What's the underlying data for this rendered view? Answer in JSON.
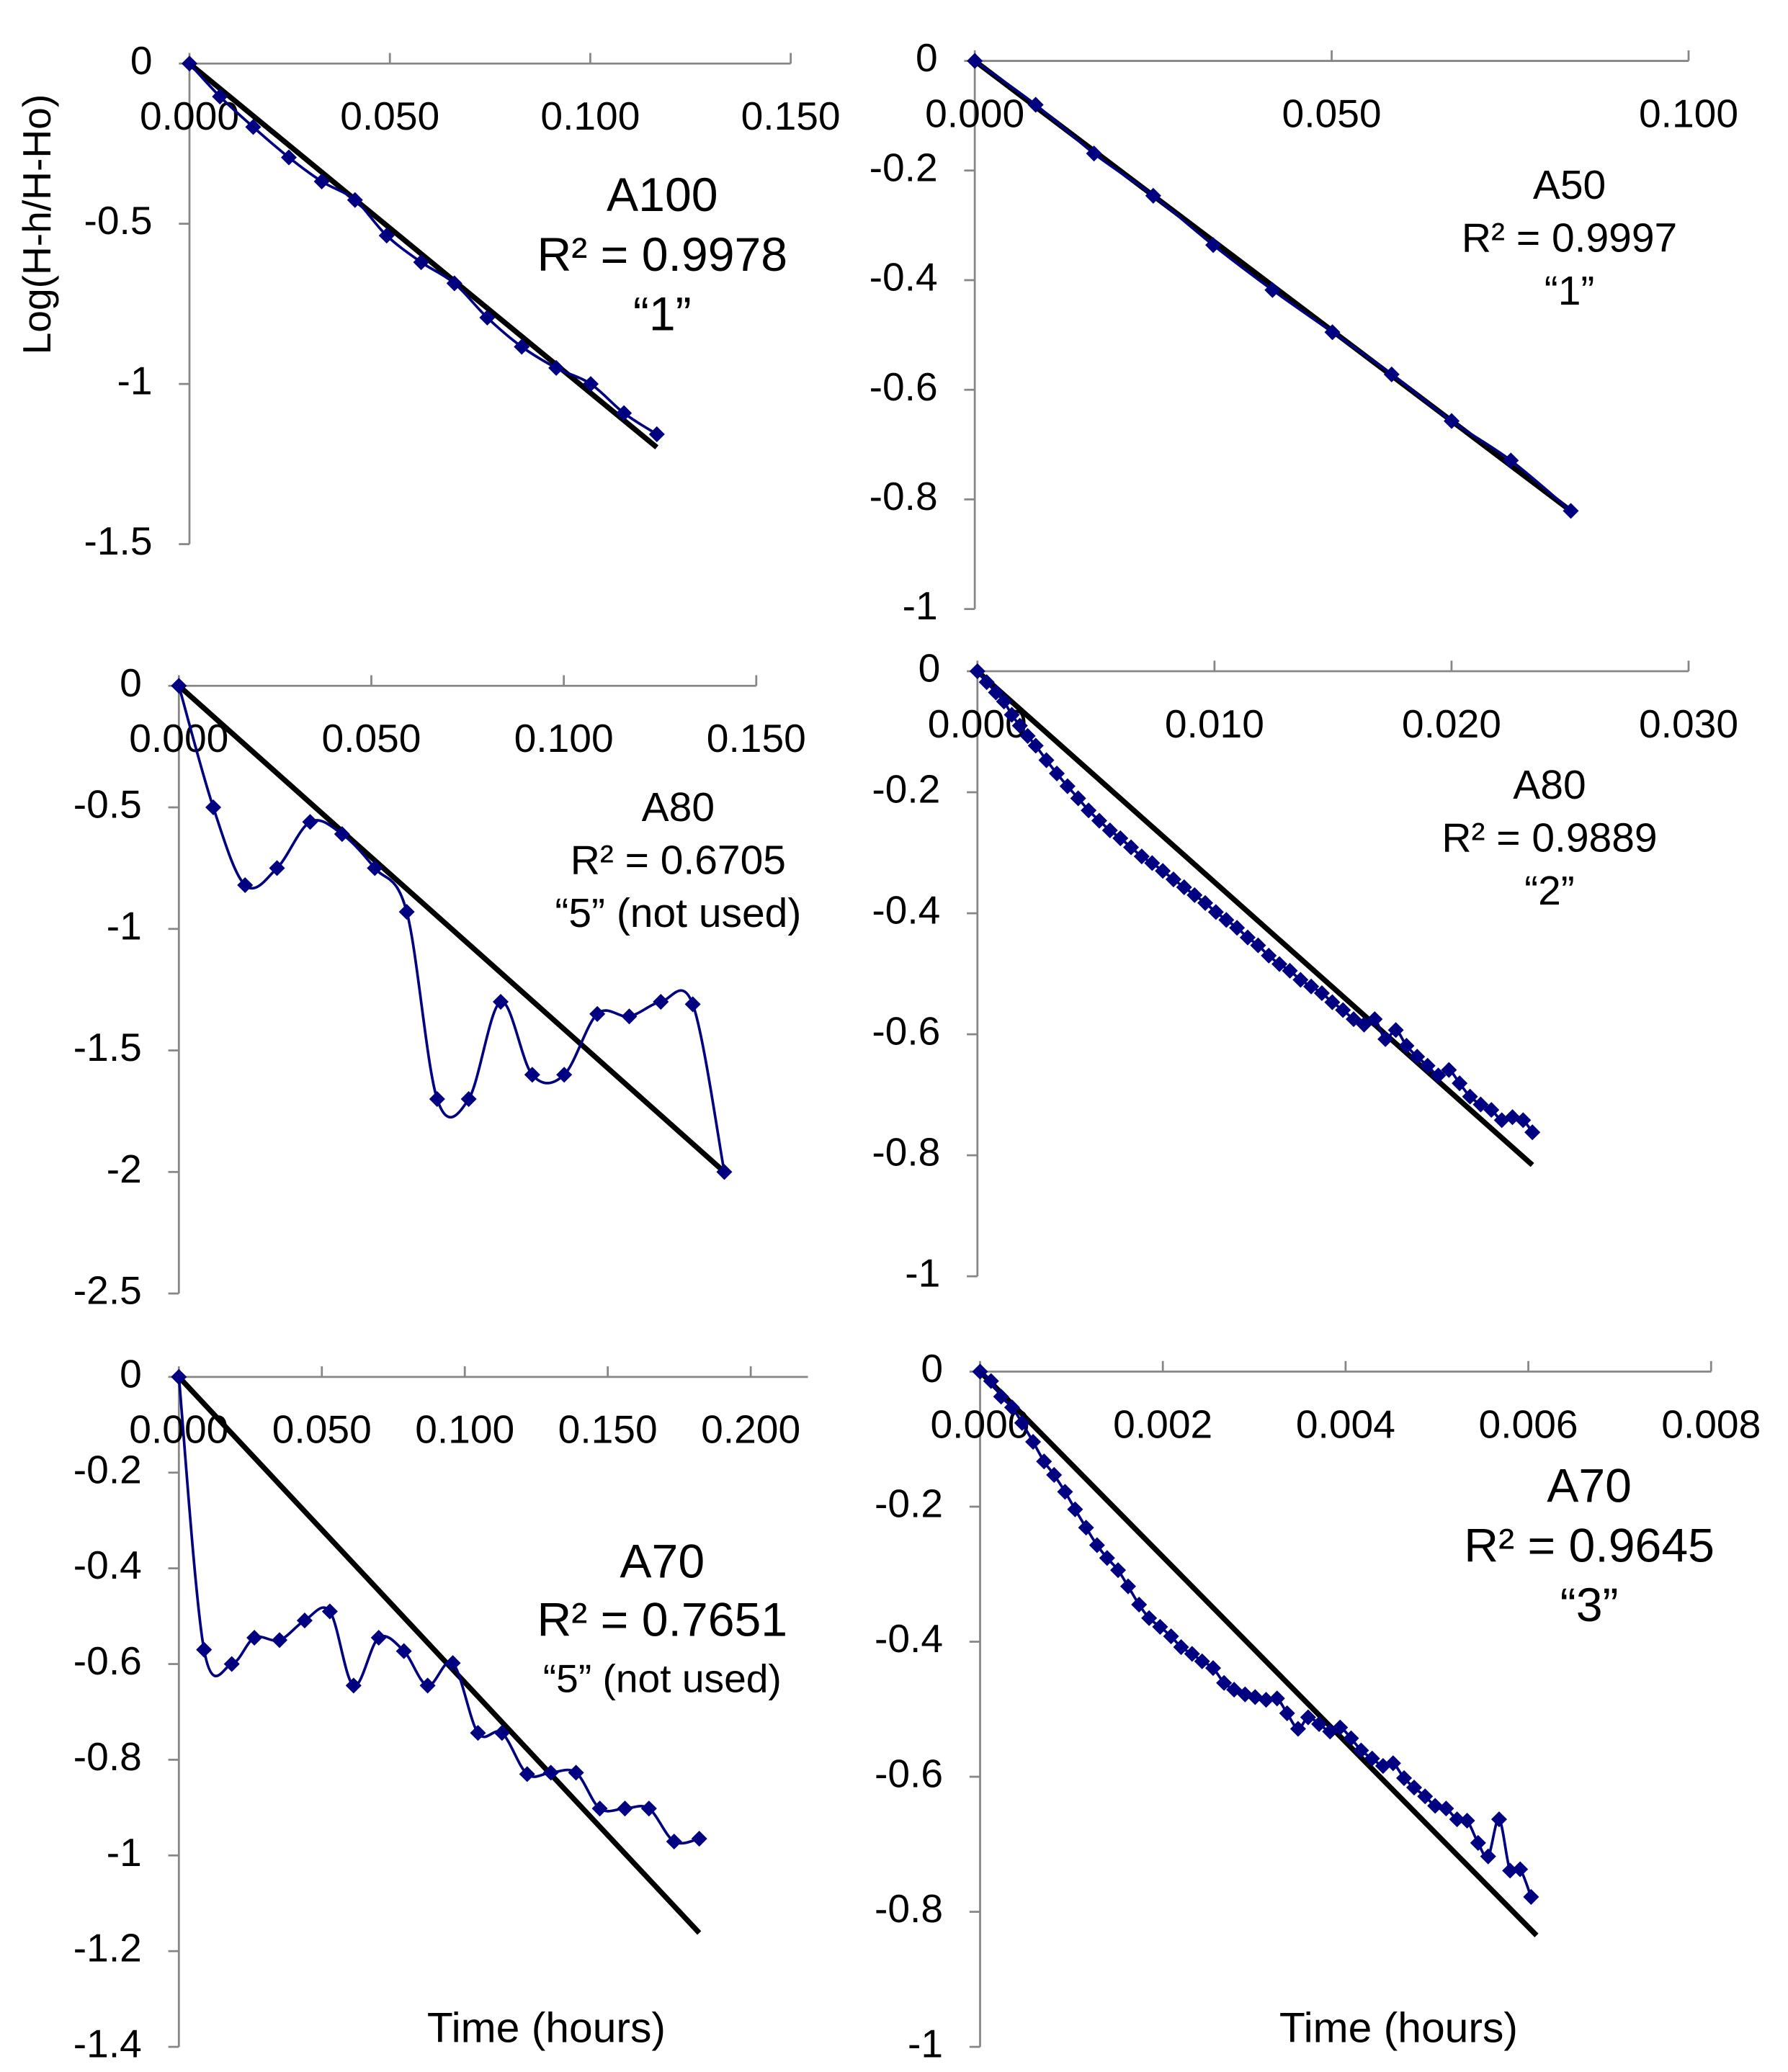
{
  "chart_data": [
    {
      "type": "line",
      "y_label": "Log(H-h/H-Ho)",
      "annotation": [
        "A100",
        "R² = 0.9978",
        "“1”"
      ],
      "xlim": [
        0,
        0.15
      ],
      "ylim": [
        -1.5,
        0
      ],
      "xticks": [
        {
          "value": 0,
          "label": "0.000"
        },
        {
          "value": 0.05,
          "label": "0.050"
        },
        {
          "value": 0.1,
          "label": "0.100"
        },
        {
          "value": 0.15,
          "label": "0.150"
        }
      ],
      "yticks": [
        0,
        -0.5,
        -1,
        -1.5
      ],
      "series": [
        {
          "color": "#000080",
          "marker": "diamond",
          "smooth": true,
          "x": [
            0,
            0.0076,
            0.0159,
            0.0248,
            0.033,
            0.0413,
            0.0492,
            0.0578,
            0.0661,
            0.0743,
            0.0829,
            0.0915,
            0.1001,
            0.1084,
            0.1166
          ],
          "values": [
            0,
            -0.103,
            -0.198,
            -0.293,
            -0.368,
            -0.426,
            -0.537,
            -0.62,
            -0.686,
            -0.793,
            -0.884,
            -0.95,
            -1.0,
            -1.091,
            -1.157
          ]
        },
        {
          "color": "#000000",
          "x": [
            0,
            0.1166
          ],
          "values": [
            0,
            -1.198
          ]
        }
      ]
    },
    {
      "type": "line",
      "annotation": [
        "A50",
        "R² = 0.9997",
        "“1”"
      ],
      "xlim": [
        0,
        0.1
      ],
      "ylim": [
        -1,
        0
      ],
      "xticks": [
        {
          "value": 0,
          "label": "0.000"
        },
        {
          "value": 0.05,
          "label": "0.050"
        },
        {
          "value": 0.1,
          "label": "0.100"
        }
      ],
      "yticks": [
        0,
        -0.2,
        -0.4,
        -0.6,
        -0.8,
        -1
      ],
      "series": [
        {
          "color": "#000080",
          "marker": "diamond",
          "smooth": true,
          "x": [
            0,
            0.00853,
            0.0167,
            0.025,
            0.0334,
            0.0417,
            0.0501,
            0.0584,
            0.0668,
            0.0751,
            0.0835
          ],
          "values": [
            0,
            -0.08,
            -0.169,
            -0.246,
            -0.336,
            -0.418,
            -0.495,
            -0.572,
            -0.657,
            -0.729,
            -0.821
          ]
        },
        {
          "color": "#000000",
          "x": [
            0,
            0.0835
          ],
          "values": [
            0,
            -0.821
          ]
        }
      ]
    },
    {
      "type": "line",
      "annotation": [
        "A80",
        "R² = 0.6705",
        "“5” (not used)"
      ],
      "xlim": [
        0,
        0.15
      ],
      "ylim": [
        -2.5,
        0
      ],
      "xticks": [
        {
          "value": 0,
          "label": "0.000"
        },
        {
          "value": 0.05,
          "label": "0.050"
        },
        {
          "value": 0.1,
          "label": "0.100"
        },
        {
          "value": 0.15,
          "label": "0.150"
        }
      ],
      "yticks": [
        0,
        -0.5,
        -1,
        -1.5,
        -2,
        -2.5
      ],
      "series": [
        {
          "color": "#000080",
          "marker": "diamond",
          "smooth": true,
          "x": [
            0,
            0.00894,
            0.0172,
            0.0255,
            0.0341,
            0.0424,
            0.0509,
            0.0592,
            0.0671,
            0.0753,
            0.0836,
            0.0918,
            0.1001,
            0.1087,
            0.117,
            0.1252,
            0.1335,
            0.1417
          ],
          "values": [
            0,
            -0.5,
            -0.82,
            -0.75,
            -0.56,
            -0.61,
            -0.75,
            -0.93,
            -1.7,
            -1.7,
            -1.3,
            -1.6,
            -1.6,
            -1.35,
            -1.36,
            -1.3,
            -1.31,
            -2.0
          ]
        },
        {
          "color": "#000000",
          "x": [
            0,
            0.1417
          ],
          "values": [
            0,
            -2.0
          ]
        }
      ]
    },
    {
      "type": "line",
      "annotation": [
        "A80",
        "R² = 0.9889",
        "“2”"
      ],
      "xlim": [
        0,
        0.03
      ],
      "ylim": [
        -1,
        0
      ],
      "xticks": [
        {
          "value": 0,
          "label": "0.000"
        },
        {
          "value": 0.01,
          "label": "0.010"
        },
        {
          "value": 0.02,
          "label": "0.020"
        },
        {
          "value": 0.03,
          "label": "0.030"
        }
      ],
      "yticks": [
        0,
        -0.2,
        -0.4,
        -0.6,
        -0.8,
        -1
      ],
      "series": [
        {
          "color": "#000080",
          "marker": "diamond",
          "smooth": true,
          "x": [
            0,
            0.00039,
            0.00078,
            0.00112,
            0.00145,
            0.00179,
            0.00212,
            0.00246,
            0.00291,
            0.00335,
            0.0038,
            0.00425,
            0.00469,
            0.00514,
            0.00559,
            0.00603,
            0.00648,
            0.00693,
            0.00737,
            0.00782,
            0.00827,
            0.00872,
            0.00916,
            0.00961,
            0.01006,
            0.0105,
            0.01095,
            0.0114,
            0.01184,
            0.01229,
            0.01274,
            0.01318,
            0.01363,
            0.01408,
            0.01453,
            0.01497,
            0.01542,
            0.01587,
            0.01631,
            0.01676,
            0.01721,
            0.01765,
            0.0181,
            0.01855,
            0.01899,
            0.01944,
            0.01989,
            0.02034,
            0.02078,
            0.02123,
            0.02168,
            0.02212,
            0.02257,
            0.02302,
            0.02341
          ],
          "values": [
            0,
            -0.018,
            -0.035,
            -0.05,
            -0.072,
            -0.09,
            -0.107,
            -0.123,
            -0.147,
            -0.169,
            -0.19,
            -0.21,
            -0.23,
            -0.247,
            -0.263,
            -0.276,
            -0.291,
            -0.306,
            -0.317,
            -0.33,
            -0.344,
            -0.357,
            -0.37,
            -0.383,
            -0.398,
            -0.411,
            -0.424,
            -0.44,
            -0.453,
            -0.47,
            -0.484,
            -0.495,
            -0.51,
            -0.521,
            -0.532,
            -0.547,
            -0.56,
            -0.575,
            -0.584,
            -0.575,
            -0.608,
            -0.593,
            -0.619,
            -0.637,
            -0.652,
            -0.668,
            -0.659,
            -0.681,
            -0.703,
            -0.716,
            -0.725,
            -0.742,
            -0.737,
            -0.742,
            -0.762
          ]
        },
        {
          "color": "#000000",
          "x": [
            0,
            0.02341
          ],
          "values": [
            0,
            -0.816
          ]
        }
      ]
    },
    {
      "type": "line",
      "x_label": "Time (hours)",
      "annotation": [
        "A70",
        "R² = 0.7651",
        "“5” (not used)"
      ],
      "xlim": [
        0,
        0.22
      ],
      "ylim": [
        -1.4,
        0
      ],
      "xticks": [
        {
          "value": 0,
          "label": "0.000"
        },
        {
          "value": 0.05,
          "label": "0.050"
        },
        {
          "value": 0.1,
          "label": "0.100"
        },
        {
          "value": 0.15,
          "label": "0.150"
        },
        {
          "value": 0.2,
          "label": "0.200"
        }
      ],
      "yticks": [
        0,
        -0.2,
        -0.4,
        -0.6,
        -0.8,
        -1,
        -1.2,
        -1.4
      ],
      "series": [
        {
          "color": "#000080",
          "marker": "diamond",
          "smooth": true,
          "x": [
            0,
            0.0088,
            0.0185,
            0.0264,
            0.0352,
            0.044,
            0.0528,
            0.0611,
            0.0699,
            0.0787,
            0.087,
            0.0958,
            0.1046,
            0.113,
            0.1218,
            0.1301,
            0.1389,
            0.1472,
            0.156,
            0.1644,
            0.1732,
            0.182
          ],
          "values": [
            0,
            -0.57,
            -0.6,
            -0.545,
            -0.55,
            -0.509,
            -0.49,
            -0.645,
            -0.545,
            -0.573,
            -0.645,
            -0.598,
            -0.744,
            -0.744,
            -0.83,
            -0.827,
            -0.827,
            -0.902,
            -0.902,
            -0.902,
            -0.971,
            -0.965
          ]
        },
        {
          "color": "#000000",
          "x": [
            0,
            0.182
          ],
          "values": [
            0,
            -1.162
          ]
        }
      ]
    },
    {
      "type": "line",
      "x_label": "Time (hours)",
      "annotation": [
        "A70",
        "R² = 0.9645",
        "“3”"
      ],
      "xlim": [
        0,
        0.008
      ],
      "ylim": [
        -1,
        0
      ],
      "xticks": [
        {
          "value": 0,
          "label": "0.000"
        },
        {
          "value": 0.002,
          "label": "0.002"
        },
        {
          "value": 0.004,
          "label": "0.004"
        },
        {
          "value": 0.006,
          "label": "0.006"
        },
        {
          "value": 0.008,
          "label": "0.008"
        }
      ],
      "yticks": [
        0,
        -0.2,
        -0.4,
        -0.6,
        -0.8,
        -1
      ],
      "series": [
        {
          "color": "#000080",
          "marker": "diamond",
          "smooth": true,
          "x": [
            0,
            0.00012,
            0.00023,
            0.00035,
            0.00046,
            0.00058,
            0.0007,
            0.00081,
            0.00093,
            0.00104,
            0.00116,
            0.00128,
            0.00139,
            0.00151,
            0.00162,
            0.00174,
            0.00185,
            0.00197,
            0.00209,
            0.0022,
            0.00232,
            0.00243,
            0.00255,
            0.00267,
            0.00278,
            0.0029,
            0.00301,
            0.00313,
            0.00325,
            0.00336,
            0.00348,
            0.00359,
            0.00371,
            0.00383,
            0.00394,
            0.00406,
            0.00417,
            0.00429,
            0.00441,
            0.00452,
            0.00464,
            0.00475,
            0.00487,
            0.00498,
            0.0051,
            0.00522,
            0.00533,
            0.00545,
            0.00556,
            0.00568,
            0.0058,
            0.00591,
            0.00603
          ],
          "values": [
            0,
            -0.014,
            -0.037,
            -0.053,
            -0.076,
            -0.104,
            -0.133,
            -0.153,
            -0.178,
            -0.204,
            -0.231,
            -0.257,
            -0.276,
            -0.294,
            -0.318,
            -0.345,
            -0.365,
            -0.378,
            -0.392,
            -0.408,
            -0.418,
            -0.429,
            -0.439,
            -0.461,
            -0.471,
            -0.478,
            -0.482,
            -0.486,
            -0.484,
            -0.506,
            -0.529,
            -0.512,
            -0.522,
            -0.533,
            -0.527,
            -0.543,
            -0.561,
            -0.573,
            -0.584,
            -0.58,
            -0.602,
            -0.616,
            -0.629,
            -0.643,
            -0.647,
            -0.663,
            -0.665,
            -0.698,
            -0.718,
            -0.663,
            -0.739,
            -0.737,
            -0.778
          ]
        },
        {
          "color": "#000000",
          "x": [
            0,
            0.00609
          ],
          "values": [
            0,
            -0.835
          ]
        }
      ]
    }
  ]
}
